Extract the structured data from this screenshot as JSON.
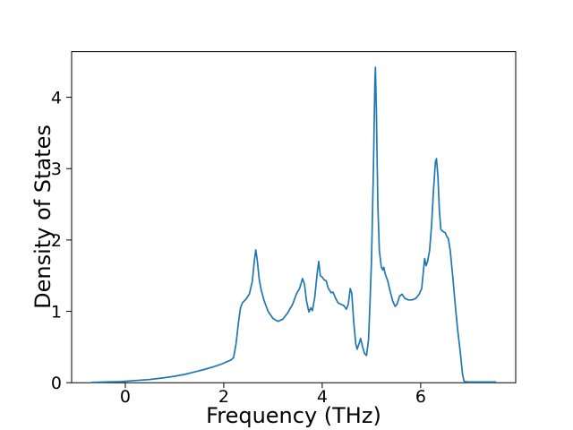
{
  "figure": {
    "background": "#ffffff"
  },
  "chart_data": {
    "type": "line",
    "title": "",
    "xlabel": "Frequency (THz)",
    "ylabel": "Density of States",
    "xlim": [
      -1.09,
      7.93
    ],
    "ylim": [
      0,
      4.64
    ],
    "xticks": [
      0,
      2,
      4,
      6
    ],
    "xtick_labels": [
      "0",
      "2",
      "4",
      "6"
    ],
    "yticks": [
      0,
      1,
      2,
      3,
      4
    ],
    "ytick_labels": [
      "0",
      "1",
      "2",
      "3",
      "4"
    ],
    "grid": false,
    "legend": null,
    "axis_color": "#000000",
    "series": [
      {
        "name": "density-of-states",
        "color": "#1f77b4",
        "line_width": 1.7,
        "x": [
          -0.68,
          -0.4,
          -0.1,
          0.2,
          0.5,
          0.8,
          1.0,
          1.2,
          1.4,
          1.6,
          1.8,
          1.95,
          2.05,
          2.15,
          2.2,
          2.25,
          2.3,
          2.34,
          2.38,
          2.45,
          2.52,
          2.58,
          2.62,
          2.65,
          2.68,
          2.72,
          2.76,
          2.82,
          2.9,
          3.0,
          3.1,
          3.2,
          3.3,
          3.4,
          3.48,
          3.54,
          3.6,
          3.64,
          3.68,
          3.73,
          3.77,
          3.8,
          3.85,
          3.9,
          3.93,
          3.96,
          4.0,
          4.04,
          4.08,
          4.12,
          4.18,
          4.22,
          4.26,
          4.32,
          4.38,
          4.44,
          4.49,
          4.53,
          4.57,
          4.6,
          4.64,
          4.68,
          4.71,
          4.75,
          4.78,
          4.82,
          4.86,
          4.9,
          4.94,
          4.97,
          5.0,
          5.04,
          5.07,
          5.08,
          5.1,
          5.13,
          5.16,
          5.2,
          5.23,
          5.25,
          5.28,
          5.33,
          5.38,
          5.43,
          5.48,
          5.52,
          5.57,
          5.62,
          5.68,
          5.75,
          5.82,
          5.9,
          5.97,
          6.02,
          6.06,
          6.08,
          6.11,
          6.14,
          6.18,
          6.22,
          6.26,
          6.3,
          6.32,
          6.35,
          6.38,
          6.41,
          6.45,
          6.5,
          6.53,
          6.56,
          6.6,
          6.65,
          6.7,
          6.75,
          6.8,
          6.85,
          6.88,
          6.95,
          7.1,
          7.3,
          7.52
        ],
        "y": [
          0.005,
          0.01,
          0.015,
          0.03,
          0.045,
          0.07,
          0.09,
          0.115,
          0.15,
          0.185,
          0.225,
          0.26,
          0.29,
          0.32,
          0.35,
          0.55,
          0.85,
          1.05,
          1.12,
          1.17,
          1.24,
          1.42,
          1.7,
          1.86,
          1.72,
          1.45,
          1.3,
          1.15,
          1.0,
          0.9,
          0.86,
          0.89,
          0.98,
          1.1,
          1.25,
          1.32,
          1.46,
          1.38,
          1.15,
          0.99,
          1.05,
          1.01,
          1.2,
          1.55,
          1.7,
          1.5,
          1.48,
          1.44,
          1.43,
          1.33,
          1.26,
          1.27,
          1.2,
          1.12,
          1.1,
          1.08,
          1.03,
          1.1,
          1.32,
          1.25,
          0.85,
          0.55,
          0.47,
          0.55,
          0.62,
          0.5,
          0.41,
          0.38,
          0.6,
          1.1,
          1.7,
          3.0,
          4.2,
          4.42,
          3.8,
          2.5,
          1.85,
          1.62,
          1.58,
          1.62,
          1.52,
          1.43,
          1.28,
          1.15,
          1.07,
          1.1,
          1.21,
          1.24,
          1.18,
          1.16,
          1.16,
          1.18,
          1.24,
          1.32,
          1.6,
          1.74,
          1.64,
          1.7,
          1.85,
          2.2,
          2.7,
          3.1,
          3.14,
          2.9,
          2.4,
          2.15,
          2.12,
          2.1,
          2.05,
          2.02,
          1.85,
          1.5,
          1.1,
          0.75,
          0.45,
          0.12,
          0.02,
          0.01,
          0.01,
          0.01,
          0.01
        ]
      }
    ]
  }
}
